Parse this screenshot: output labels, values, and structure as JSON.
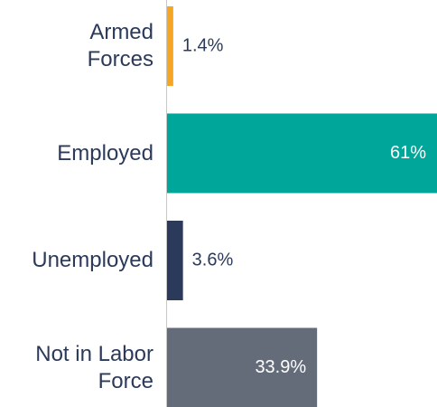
{
  "chart_data": {
    "type": "hbar",
    "categories": [
      "Armed Forces",
      "Employed",
      "Unemployed",
      "Not in Labor Force"
    ],
    "values": [
      1.4,
      61,
      3.6,
      33.9
    ],
    "value_labels": [
      "1.4%",
      "61%",
      "3.6%",
      "33.9%"
    ],
    "colors": [
      "#f5a623",
      "#00a699",
      "#2b3a5a",
      "#646c79"
    ]
  }
}
